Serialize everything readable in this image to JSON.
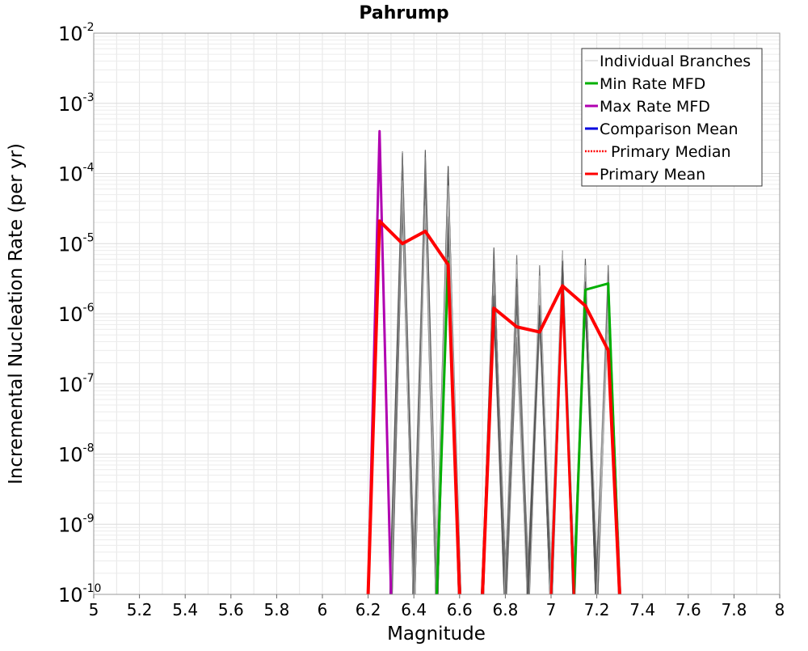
{
  "chart_data": {
    "type": "line",
    "title": "Pahrump",
    "xlabel": "Magnitude",
    "ylabel": "Incremental Nucleation Rate (per yr)",
    "xlim": [
      5,
      8
    ],
    "ylim_log10": [
      -10,
      -2
    ],
    "y_scale": "log",
    "grid": true,
    "legend_position": "top-right",
    "x_ticks": [
      "5",
      "5.2",
      "5.4",
      "5.6",
      "5.8",
      "6",
      "6.2",
      "6.4",
      "6.6",
      "6.8",
      "7",
      "7.2",
      "7.4",
      "7.6",
      "7.8",
      "8"
    ],
    "y_ticks": [
      {
        "base": "10",
        "exp": "-10"
      },
      {
        "base": "10",
        "exp": "-9"
      },
      {
        "base": "10",
        "exp": "-8"
      },
      {
        "base": "10",
        "exp": "-7"
      },
      {
        "base": "10",
        "exp": "-6"
      },
      {
        "base": "10",
        "exp": "-5"
      },
      {
        "base": "10",
        "exp": "-4"
      },
      {
        "base": "10",
        "exp": "-3"
      },
      {
        "base": "10",
        "exp": "-2"
      }
    ],
    "legend": [
      {
        "label": "Individual Branches",
        "color": "#c8c8c8",
        "style": "solid"
      },
      {
        "label": "Min Rate MFD",
        "color": "#00b000",
        "style": "solid"
      },
      {
        "label": "Max Rate MFD",
        "color": "#b000b0",
        "style": "solid"
      },
      {
        "label": "Comparison Mean",
        "color": "#0000e0",
        "style": "solid"
      },
      {
        "label": "Primary Median",
        "color": "#ff0000",
        "style": "dotted"
      },
      {
        "label": "Primary Mean",
        "color": "#ff0000",
        "style": "solid"
      }
    ],
    "branch_peaks": [
      {
        "x": 6.35,
        "ymax": 0.00025,
        "ymin": 3e-05
      },
      {
        "x": 6.45,
        "ymax": 0.00022,
        "ymin": 3e-05
      },
      {
        "x": 6.55,
        "ymax": 0.00013,
        "ymin": 5e-06
      },
      {
        "x": 6.75,
        "ymax": 1e-05,
        "ymin": 8e-07
      },
      {
        "x": 6.85,
        "ymax": 7.5e-06,
        "ymin": 4e-07
      },
      {
        "x": 6.95,
        "ymax": 8e-06,
        "ymin": 6e-07
      },
      {
        "x": 7.05,
        "ymax": 1.1e-05,
        "ymin": 1.5e-06
      },
      {
        "x": 7.15,
        "ymax": 1.1e-05,
        "ymin": 1e-06
      },
      {
        "x": 7.25,
        "ymax": 5.5e-06,
        "ymin": 8e-07
      }
    ],
    "series": [
      {
        "name": "Min Rate MFD",
        "color": "#00b000",
        "segments": [
          [
            {
              "x": 6.5,
              "y": 1e-10
            },
            {
              "x": 6.55,
              "y": 5.5e-06
            },
            {
              "x": 6.6,
              "y": 1e-10
            }
          ],
          [
            {
              "x": 7.1,
              "y": 1e-10
            },
            {
              "x": 7.15,
              "y": 2.2e-06
            },
            {
              "x": 7.25,
              "y": 2.7e-06
            },
            {
              "x": 7.3,
              "y": 1e-10
            }
          ]
        ]
      },
      {
        "name": "Max Rate MFD",
        "color": "#b000b0",
        "segments": [
          [
            {
              "x": 6.2,
              "y": 1e-10
            },
            {
              "x": 6.25,
              "y": 0.0004
            },
            {
              "x": 6.3,
              "y": 1e-10
            }
          ]
        ]
      },
      {
        "name": "Primary Median",
        "color": "#ff0000",
        "segments": [
          [
            {
              "x": 7.0,
              "y": 1e-10
            },
            {
              "x": 7.05,
              "y": 2.2e-06
            },
            {
              "x": 7.1,
              "y": 1e-10
            }
          ]
        ]
      },
      {
        "name": "Primary Mean",
        "color": "#ff0000",
        "segments": [
          [
            {
              "x": 6.2,
              "y": 1e-10
            },
            {
              "x": 6.25,
              "y": 2.1e-05
            },
            {
              "x": 6.35,
              "y": 1e-05
            },
            {
              "x": 6.45,
              "y": 1.5e-05
            },
            {
              "x": 6.55,
              "y": 5e-06
            },
            {
              "x": 6.6,
              "y": 1e-10
            }
          ],
          [
            {
              "x": 6.7,
              "y": 1e-10
            },
            {
              "x": 6.75,
              "y": 1.2e-06
            },
            {
              "x": 6.85,
              "y": 6.5e-07
            },
            {
              "x": 6.95,
              "y": 5.5e-07
            },
            {
              "x": 7.05,
              "y": 2.5e-06
            },
            {
              "x": 7.15,
              "y": 1.3e-06
            },
            {
              "x": 7.25,
              "y": 3e-07
            },
            {
              "x": 7.3,
              "y": 1e-10
            }
          ]
        ]
      }
    ]
  }
}
